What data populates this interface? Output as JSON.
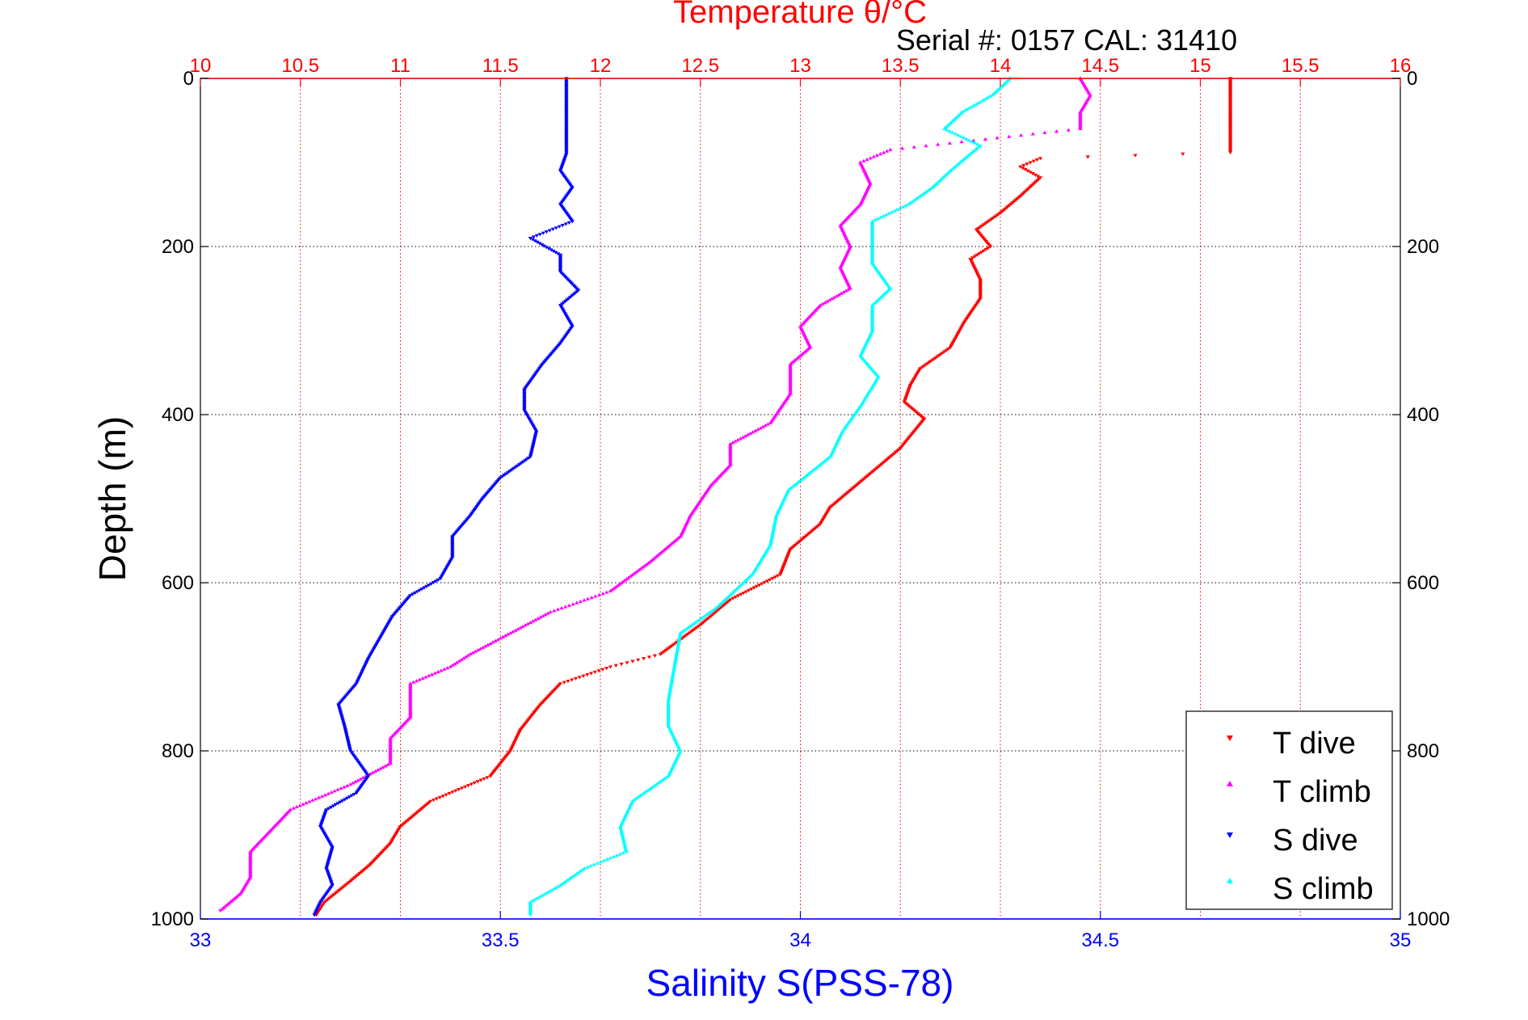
{
  "chart_data": {
    "type": "scatter",
    "title": "Temperature θ/°C",
    "subtitle": "Serial #: 0157  CAL: 31410",
    "xlabel": "Salinity S(PSS-78)",
    "ylabel": "Depth (m)",
    "x_bottom": {
      "label": "Salinity S(PSS-78)",
      "range": [
        33,
        35
      ],
      "ticks": [
        33,
        33.5,
        34,
        34.5,
        35
      ],
      "color": "#0000ff"
    },
    "x_top": {
      "label": "Temperature θ/°C",
      "range": [
        10,
        16
      ],
      "ticks": [
        10,
        10.5,
        11,
        11.5,
        12,
        12.5,
        13,
        13.5,
        14,
        14.5,
        15,
        15.5,
        16
      ],
      "color": "#ff0000"
    },
    "y": {
      "label": "Depth (m)",
      "range": [
        0,
        1000
      ],
      "reversed": true,
      "ticks": [
        0,
        200,
        400,
        600,
        800,
        1000
      ]
    },
    "grid": true,
    "legend": {
      "placement": "bottom-right",
      "entries": [
        "T dive",
        "T climb",
        "S dive",
        "S climb"
      ]
    },
    "colors": {
      "T dive": "#ff0000",
      "T climb": "#ff00ff",
      "S dive": "#0000ff",
      "S climb": "#00ffff"
    },
    "series": [
      {
        "name": "T dive",
        "axis": "temperature",
        "marker": "triangle-down",
        "points": [
          [
            15.15,
            0
          ],
          [
            15.15,
            20
          ],
          [
            15.15,
            45
          ],
          [
            15.15,
            70
          ],
          [
            15.15,
            88
          ],
          [
            14.2,
            95
          ],
          [
            14.1,
            105
          ],
          [
            14.2,
            118
          ],
          [
            14.1,
            140
          ],
          [
            14.0,
            160
          ],
          [
            13.88,
            180
          ],
          [
            13.95,
            200
          ],
          [
            13.85,
            215
          ],
          [
            13.9,
            240
          ],
          [
            13.9,
            262
          ],
          [
            13.82,
            290
          ],
          [
            13.75,
            320
          ],
          [
            13.6,
            345
          ],
          [
            13.55,
            365
          ],
          [
            13.52,
            385
          ],
          [
            13.62,
            405
          ],
          [
            13.5,
            440
          ],
          [
            13.35,
            470
          ],
          [
            13.25,
            490
          ],
          [
            13.15,
            510
          ],
          [
            13.1,
            530
          ],
          [
            12.95,
            560
          ],
          [
            12.9,
            590
          ],
          [
            12.65,
            620
          ],
          [
            12.5,
            650
          ],
          [
            12.3,
            685
          ],
          [
            12.05,
            700
          ],
          [
            11.8,
            720
          ],
          [
            11.7,
            745
          ],
          [
            11.6,
            775
          ],
          [
            11.55,
            800
          ],
          [
            11.45,
            830
          ],
          [
            11.15,
            860
          ],
          [
            11.0,
            890
          ],
          [
            10.95,
            910
          ],
          [
            10.85,
            935
          ],
          [
            10.75,
            955
          ],
          [
            10.62,
            980
          ],
          [
            10.58,
            995
          ]
        ]
      },
      {
        "name": "T climb",
        "axis": "temperature",
        "marker": "triangle-up",
        "points": [
          [
            14.4,
            0
          ],
          [
            14.45,
            20
          ],
          [
            14.4,
            40
          ],
          [
            14.4,
            60
          ],
          [
            13.45,
            85
          ],
          [
            13.3,
            100
          ],
          [
            13.35,
            125
          ],
          [
            13.3,
            150
          ],
          [
            13.2,
            175
          ],
          [
            13.25,
            200
          ],
          [
            13.2,
            225
          ],
          [
            13.25,
            250
          ],
          [
            13.1,
            270
          ],
          [
            13.0,
            295
          ],
          [
            13.05,
            320
          ],
          [
            12.95,
            340
          ],
          [
            12.95,
            375
          ],
          [
            12.85,
            410
          ],
          [
            12.65,
            435
          ],
          [
            12.65,
            460
          ],
          [
            12.55,
            485
          ],
          [
            12.45,
            520
          ],
          [
            12.4,
            545
          ],
          [
            12.25,
            575
          ],
          [
            12.05,
            610
          ],
          [
            11.75,
            635
          ],
          [
            11.55,
            660
          ],
          [
            11.35,
            685
          ],
          [
            11.25,
            700
          ],
          [
            11.05,
            720
          ],
          [
            11.05,
            760
          ],
          [
            10.95,
            785
          ],
          [
            10.95,
            815
          ],
          [
            10.75,
            840
          ],
          [
            10.45,
            870
          ],
          [
            10.35,
            895
          ],
          [
            10.25,
            920
          ],
          [
            10.25,
            950
          ],
          [
            10.2,
            970
          ],
          [
            10.1,
            990
          ]
        ]
      },
      {
        "name": "S dive",
        "axis": "salinity",
        "marker": "triangle-down",
        "points": [
          [
            33.61,
            0
          ],
          [
            33.61,
            15
          ],
          [
            33.61,
            40
          ],
          [
            33.61,
            60
          ],
          [
            33.61,
            80
          ],
          [
            33.61,
            90
          ],
          [
            33.6,
            110
          ],
          [
            33.62,
            130
          ],
          [
            33.6,
            150
          ],
          [
            33.62,
            170
          ],
          [
            33.55,
            190
          ],
          [
            33.6,
            210
          ],
          [
            33.6,
            230
          ],
          [
            33.63,
            252
          ],
          [
            33.6,
            270
          ],
          [
            33.62,
            295
          ],
          [
            33.6,
            315
          ],
          [
            33.57,
            340
          ],
          [
            33.54,
            370
          ],
          [
            33.54,
            395
          ],
          [
            33.56,
            420
          ],
          [
            33.55,
            450
          ],
          [
            33.5,
            475
          ],
          [
            33.47,
            500
          ],
          [
            33.45,
            520
          ],
          [
            33.42,
            545
          ],
          [
            33.42,
            570
          ],
          [
            33.4,
            595
          ],
          [
            33.35,
            615
          ],
          [
            33.32,
            640
          ],
          [
            33.3,
            665
          ],
          [
            33.28,
            690
          ],
          [
            33.26,
            720
          ],
          [
            33.23,
            745
          ],
          [
            33.24,
            770
          ],
          [
            33.25,
            800
          ],
          [
            33.28,
            830
          ],
          [
            33.26,
            850
          ],
          [
            33.21,
            870
          ],
          [
            33.2,
            890
          ],
          [
            33.22,
            915
          ],
          [
            33.21,
            940
          ],
          [
            33.22,
            960
          ],
          [
            33.2,
            980
          ],
          [
            33.19,
            995
          ]
        ]
      },
      {
        "name": "S climb",
        "axis": "salinity",
        "marker": "triangle-up",
        "points": [
          [
            34.35,
            0
          ],
          [
            34.32,
            20
          ],
          [
            34.27,
            40
          ],
          [
            34.24,
            60
          ],
          [
            34.3,
            80
          ],
          [
            34.25,
            110
          ],
          [
            34.22,
            130
          ],
          [
            34.18,
            150
          ],
          [
            34.12,
            170
          ],
          [
            34.12,
            195
          ],
          [
            34.12,
            220
          ],
          [
            34.15,
            250
          ],
          [
            34.12,
            270
          ],
          [
            34.12,
            300
          ],
          [
            34.1,
            330
          ],
          [
            34.13,
            355
          ],
          [
            34.1,
            390
          ],
          [
            34.07,
            420
          ],
          [
            34.05,
            450
          ],
          [
            33.98,
            490
          ],
          [
            33.96,
            520
          ],
          [
            33.95,
            555
          ],
          [
            33.92,
            590
          ],
          [
            33.86,
            630
          ],
          [
            33.8,
            660
          ],
          [
            33.79,
            700
          ],
          [
            33.78,
            740
          ],
          [
            33.78,
            770
          ],
          [
            33.8,
            800
          ],
          [
            33.78,
            830
          ],
          [
            33.72,
            860
          ],
          [
            33.7,
            890
          ],
          [
            33.71,
            920
          ],
          [
            33.64,
            940
          ],
          [
            33.6,
            960
          ],
          [
            33.55,
            980
          ],
          [
            33.55,
            995
          ]
        ]
      }
    ]
  }
}
